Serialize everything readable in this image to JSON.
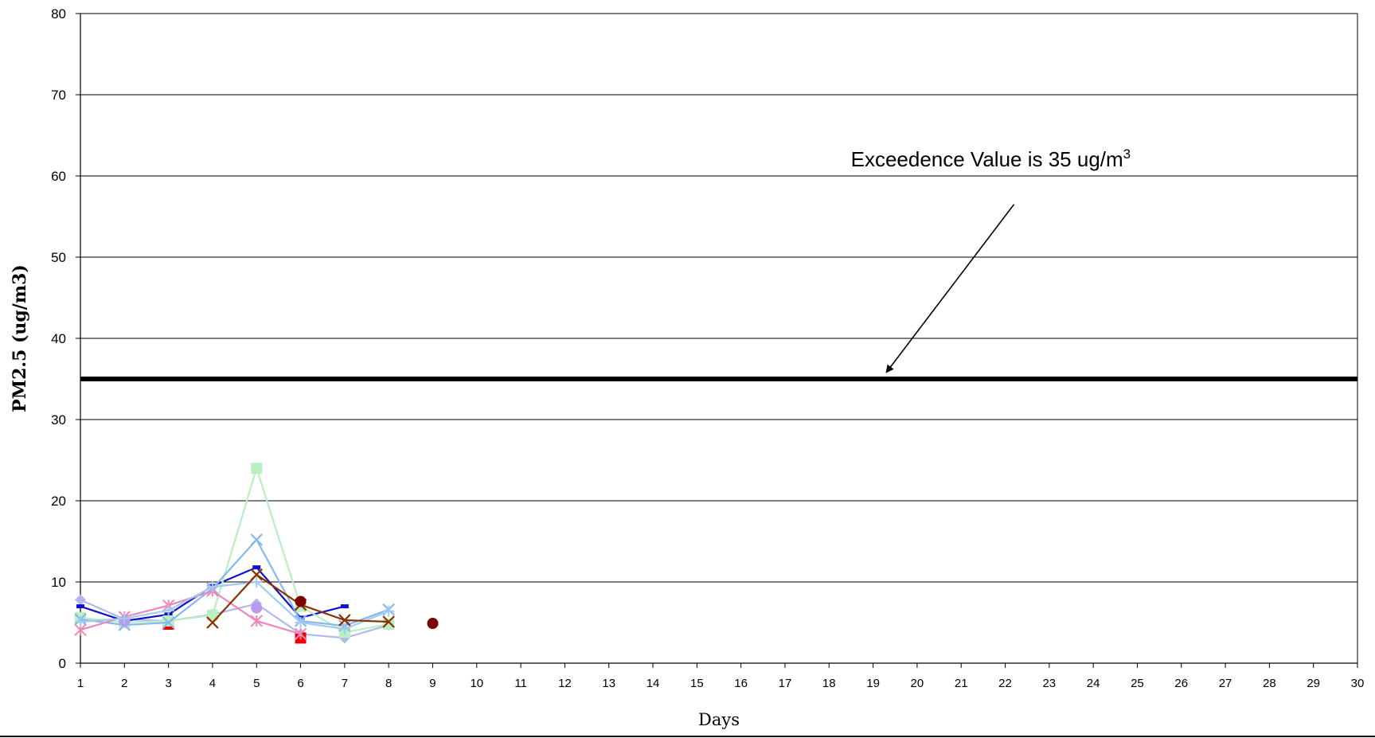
{
  "chart_data": {
    "type": "line",
    "title": "",
    "xlabel": "Days",
    "ylabel": "PM2.5 (ug/m3)",
    "xlim": [
      1,
      30
    ],
    "ylim": [
      0,
      80
    ],
    "x_ticks": [
      "1",
      "2",
      "3",
      "4",
      "5",
      "6",
      "7",
      "8",
      "9",
      "10",
      "11",
      "12",
      "13",
      "14",
      "15",
      "16",
      "17",
      "18",
      "19",
      "20",
      "21",
      "22",
      "23",
      "24",
      "25",
      "26",
      "27",
      "28",
      "29",
      "30"
    ],
    "y_ticks": [
      "0",
      "10",
      "20",
      "30",
      "40",
      "50",
      "60",
      "70",
      "80"
    ],
    "grid": true,
    "legend": "none",
    "threshold": {
      "y": 35,
      "color": "#000000"
    },
    "annotation": {
      "text": "Exceedence Value is 35 ug/m",
      "superscript": "3",
      "arrow_from": [
        22.2,
        56.5
      ],
      "arrow_to": [
        19.3,
        35.8
      ]
    },
    "series": [
      {
        "color": "#b0b8ee",
        "marker": "diamond",
        "x": [
          1,
          2,
          3,
          4,
          5,
          6,
          7,
          8
        ],
        "y": [
          7.8,
          5.4,
          5.2,
          6.0,
          7.3,
          3.6,
          3.1,
          4.7
        ]
      },
      {
        "color": "#ee0000",
        "marker": "square",
        "x": [
          3,
          6
        ],
        "y": [
          4.8,
          3.1
        ]
      },
      {
        "color": "#1010cc",
        "marker": "dash",
        "x": [
          1,
          2,
          3,
          4,
          5,
          6,
          7
        ],
        "y": [
          7.0,
          5.2,
          6.0,
          9.5,
          11.8,
          5.6,
          7.0
        ]
      },
      {
        "color": "#b8f0c0",
        "marker": "square",
        "x": [
          1,
          2,
          3,
          4,
          5,
          6,
          7,
          8
        ],
        "y": [
          5.6,
          5.0,
          5.2,
          5.9,
          24.0,
          7.0,
          3.8,
          4.8
        ]
      },
      {
        "color": "#88b8f0",
        "marker": "x",
        "x": [
          1,
          2,
          3,
          4,
          5,
          6,
          7,
          8
        ],
        "y": [
          5.4,
          4.7,
          5.0,
          9.2,
          15.2,
          5.2,
          4.6,
          6.6
        ]
      },
      {
        "color": "#ee88bb",
        "marker": "asterisk",
        "x": [
          1,
          2,
          3,
          4,
          5,
          6
        ],
        "y": [
          4.1,
          5.7,
          7.1,
          8.9,
          5.2,
          3.6
        ]
      },
      {
        "color": "#bb99ee",
        "marker": "circle",
        "x": [
          2,
          5
        ],
        "y": [
          5.2,
          6.8
        ]
      },
      {
        "color": "#a0ccee",
        "marker": "plus",
        "x": [
          1,
          2,
          3,
          4,
          5,
          6,
          7,
          8
        ],
        "y": [
          5.1,
          5.5,
          6.5,
          9.4,
          10.0,
          5.0,
          4.2,
          6.4
        ]
      },
      {
        "color": "#883300",
        "marker": "x",
        "x": [
          4,
          5,
          6,
          7,
          8
        ],
        "y": [
          5.0,
          10.9,
          7.2,
          5.3,
          5.1
        ]
      },
      {
        "color": "#7a0000",
        "marker": "circle",
        "x": [
          6,
          9
        ],
        "y": [
          7.6,
          4.9
        ]
      }
    ]
  }
}
